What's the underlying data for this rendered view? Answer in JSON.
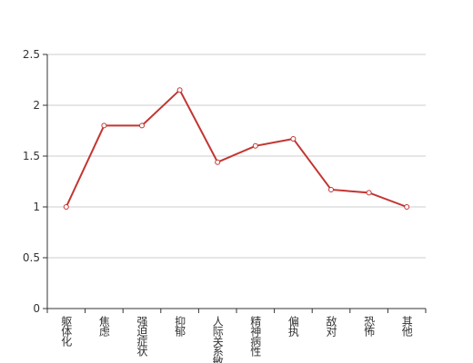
{
  "chart_data": {
    "type": "line",
    "categories": [
      "躯体化",
      "焦虑",
      "强迫症状",
      "抑郁",
      "人际关系敏感",
      "精神病性",
      "偏执",
      "敌对",
      "恐怖",
      "其他"
    ],
    "values": [
      1,
      1.8,
      1.8,
      2.15,
      1.44,
      1.6,
      1.67,
      1.17,
      1.14,
      1
    ],
    "color": "#c23531",
    "ylim": [
      0,
      2.5
    ],
    "yticks": [
      0,
      0.5,
      1,
      1.5,
      2,
      2.5
    ],
    "grid": true
  }
}
